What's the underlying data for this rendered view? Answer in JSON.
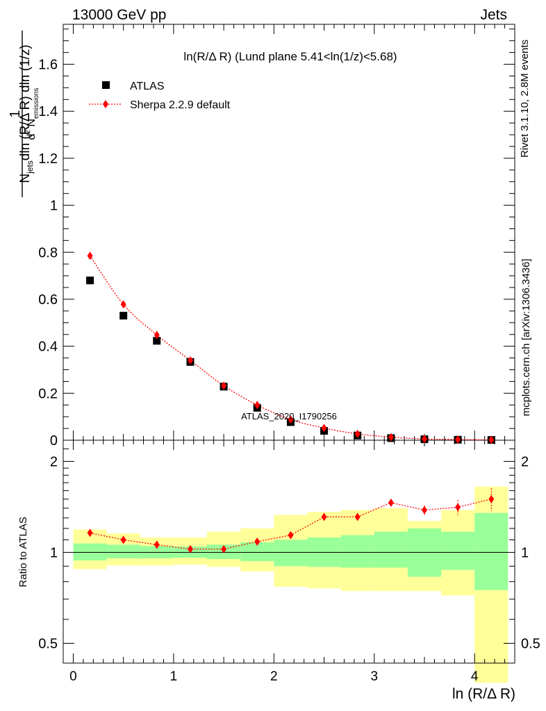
{
  "header": {
    "left": "13000 GeV pp",
    "right": "Jets"
  },
  "side_text": {
    "rivet": "Rivet 3.1.10,  2.8M events",
    "mcplots": "mcplots.cern.ch [arXiv:1306.3436]"
  },
  "colors": {
    "data": "#000000",
    "mc": "#ff0000",
    "band_inner": "#99ff99",
    "band_outer": "#ffff99",
    "watermark": "#999999"
  },
  "chart_data": [
    {
      "type": "scatter",
      "title": "ln(R/Δ R) (Lund plane 5.41<ln(1/z)<5.68)",
      "ylabel": "1/N_jets d²N_emissions / dln(R/Δ R) dln(1/z)",
      "ylim": [
        0,
        1.77
      ],
      "xlim": [
        -0.1,
        4.4
      ],
      "yticks": [
        0,
        0.2,
        0.4,
        0.6,
        0.8,
        1,
        1.2,
        1.4,
        1.6
      ],
      "ytick_labels": [
        "0",
        "0.2",
        "0.4",
        "0.6",
        "0.8",
        "1",
        "1.2",
        "1.4",
        "1.6"
      ],
      "watermark": "ATLAS_2020_I1790256",
      "legend_position": "top-left",
      "series": [
        {
          "name": "ATLAS",
          "marker": "square",
          "x": [
            0.167,
            0.5,
            0.833,
            1.167,
            1.5,
            1.833,
            2.167,
            2.5,
            2.833,
            3.167,
            3.5,
            3.833,
            4.167
          ],
          "y": [
            0.68,
            0.53,
            0.423,
            0.333,
            0.228,
            0.138,
            0.077,
            0.04,
            0.02,
            0.009,
            0.004,
            0.002,
            0.001
          ]
        },
        {
          "name": "Sherpa 2.2.9 default",
          "marker": "diamond",
          "line": "dotted",
          "x": [
            0.167,
            0.5,
            0.833,
            1.167,
            1.5,
            1.833,
            2.167,
            2.5,
            2.833,
            3.167,
            3.5,
            3.833,
            4.167
          ],
          "y": [
            0.785,
            0.578,
            0.448,
            0.34,
            0.232,
            0.15,
            0.088,
            0.052,
            0.027,
            0.013,
            0.0055,
            0.0028,
            0.0015
          ]
        }
      ]
    },
    {
      "type": "scatter",
      "xlabel": "ln (R/Δ R)",
      "ylabel": "Ratio to ATLAS",
      "yscale": "log",
      "ylim": [
        0.43,
        2.35
      ],
      "yticks": [
        0.5,
        1,
        2
      ],
      "ytick_labels": [
        "0.5",
        "1",
        "2"
      ],
      "xticks": [
        0,
        1,
        2,
        3,
        4
      ],
      "xtick_labels": [
        "0",
        "1",
        "2",
        "3",
        "4"
      ],
      "bins": [
        {
          "lo": 0.0,
          "hi": 0.333,
          "inner": [
            0.94,
            1.07
          ],
          "outer": [
            0.88,
            1.19
          ]
        },
        {
          "lo": 0.333,
          "hi": 0.667,
          "inner": [
            0.955,
            1.06
          ],
          "outer": [
            0.905,
            1.155
          ]
        },
        {
          "lo": 0.667,
          "hi": 1.0,
          "inner": [
            0.955,
            1.05
          ],
          "outer": [
            0.905,
            1.12
          ]
        },
        {
          "lo": 1.0,
          "hi": 1.333,
          "inner": [
            0.96,
            1.045
          ],
          "outer": [
            0.91,
            1.12
          ]
        },
        {
          "lo": 1.333,
          "hi": 1.667,
          "inner": [
            0.95,
            1.06
          ],
          "outer": [
            0.895,
            1.17
          ]
        },
        {
          "lo": 1.667,
          "hi": 2.0,
          "inner": [
            0.935,
            1.08
          ],
          "outer": [
            0.865,
            1.2
          ]
        },
        {
          "lo": 2.0,
          "hi": 2.333,
          "inner": [
            0.9,
            1.1
          ],
          "outer": [
            0.77,
            1.33
          ]
        },
        {
          "lo": 2.333,
          "hi": 2.667,
          "inner": [
            0.895,
            1.12
          ],
          "outer": [
            0.76,
            1.36
          ]
        },
        {
          "lo": 2.667,
          "hi": 3.0,
          "inner": [
            0.89,
            1.14
          ],
          "outer": [
            0.745,
            1.38
          ]
        },
        {
          "lo": 3.0,
          "hi": 3.333,
          "inner": [
            0.89,
            1.17
          ],
          "outer": [
            0.745,
            1.4
          ]
        },
        {
          "lo": 3.333,
          "hi": 3.667,
          "inner": [
            0.83,
            1.2
          ],
          "outer": [
            0.745,
            1.27
          ]
        },
        {
          "lo": 3.667,
          "hi": 4.0,
          "inner": [
            0.875,
            1.17
          ],
          "outer": [
            0.72,
            1.38
          ]
        },
        {
          "lo": 4.0,
          "hi": 4.333,
          "inner": [
            0.75,
            1.35
          ],
          "outer": [
            0.37,
            1.65
          ]
        }
      ],
      "series": [
        {
          "name": "Sherpa 2.2.9 default",
          "marker": "diamond",
          "x": [
            0.167,
            0.5,
            0.833,
            1.167,
            1.5,
            1.833,
            2.167,
            2.5,
            2.833,
            3.167,
            3.5,
            3.833,
            4.167
          ],
          "y": [
            1.16,
            1.1,
            1.06,
            1.025,
            1.025,
            1.085,
            1.14,
            1.31,
            1.31,
            1.46,
            1.38,
            1.41,
            1.5
          ],
          "yerr": [
            0.01,
            0.01,
            0.01,
            0.01,
            0.01,
            0.01,
            0.01,
            0.015,
            0.02,
            0.04,
            0.05,
            0.08,
            0.13
          ]
        }
      ]
    }
  ]
}
